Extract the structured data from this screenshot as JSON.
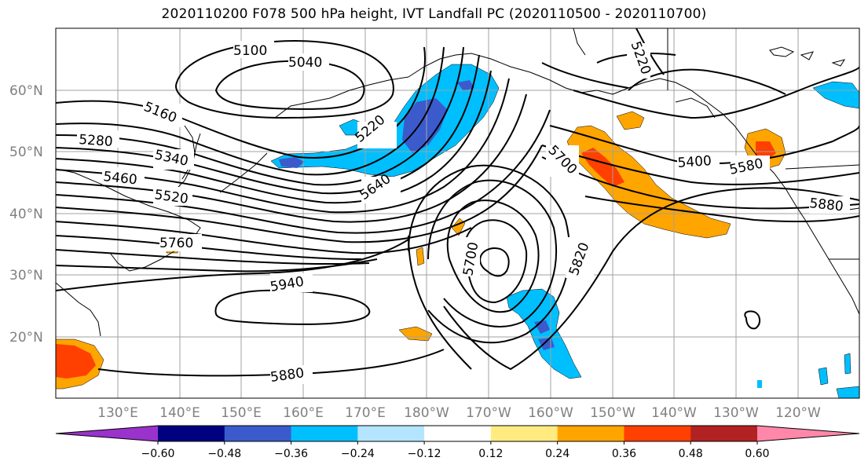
{
  "title": "2020110200 F078 500 hPa height, IVT Landfall PC (2020110500 - 2020110700)",
  "map": {
    "lat_labels": [
      "60°N",
      "50°N",
      "40°N",
      "30°N",
      "20°N"
    ],
    "lon_labels": [
      "130°E",
      "140°E",
      "150°E",
      "160°E",
      "170°E",
      "180°W",
      "170°W",
      "160°W",
      "150°W",
      "140°W",
      "130°W",
      "120°W"
    ],
    "contour_labels": [
      "5100",
      "5040",
      "5220",
      "5160",
      "5280",
      "5340",
      "5460",
      "5520",
      "5220",
      "5640",
      "5700",
      "5400",
      "5580",
      "5880",
      "5760",
      "5700",
      "5820",
      "5940",
      "5880"
    ],
    "gridlines": true
  },
  "colorbar": {
    "ticks": [
      "−0.60",
      "−0.48",
      "−0.36",
      "−0.24",
      "−0.12",
      "0.12",
      "0.24",
      "0.36",
      "0.48",
      "0.60"
    ],
    "colors": [
      "#9933cc",
      "#000080",
      "#3b5bcc",
      "#00bfff",
      "#b3e5ff",
      "#ffffff",
      "#ffeb80",
      "#ffa500",
      "#ff4000",
      "#b22222",
      "#ff88aa"
    ]
  }
}
